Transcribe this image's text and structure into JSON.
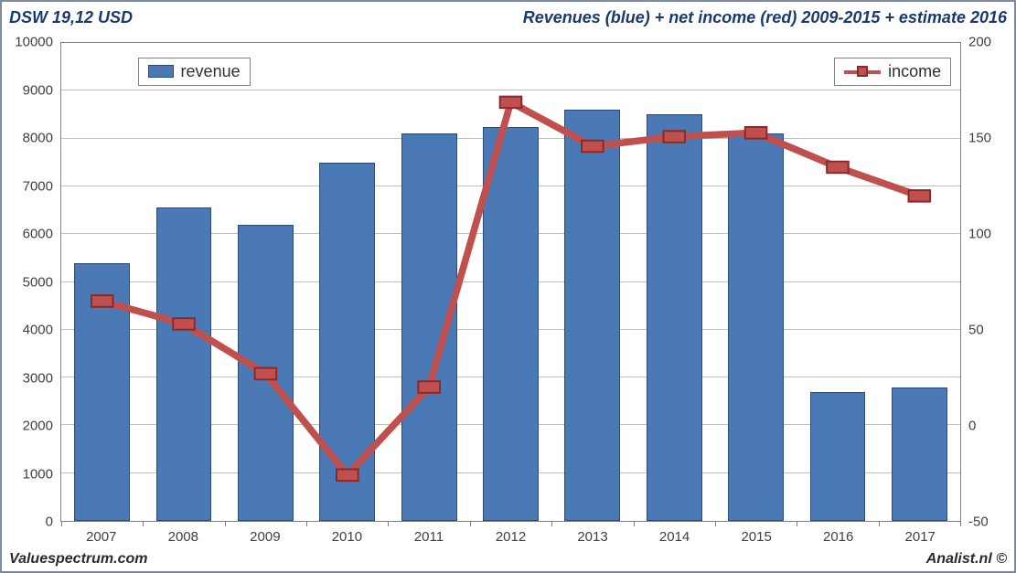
{
  "header": {
    "left": "DSW 19,12 USD",
    "right": "Revenues (blue) + net income (red) 2009-2015 + estimate 2016"
  },
  "footer": {
    "left": "Valuespectrum.com",
    "right": "Analist.nl ©"
  },
  "chart": {
    "type": "bar+line",
    "background_color": "#ffffff",
    "border_color": "#7c8aa0",
    "grid_color": "#c0c0c0",
    "axis_color": "#808080",
    "label_color": "#404040",
    "label_fontsize": 15,
    "categories": [
      "2007",
      "2008",
      "2009",
      "2010",
      "2011",
      "2012",
      "2013",
      "2014",
      "2015",
      "2016",
      "2017"
    ],
    "left_axis": {
      "min": 0,
      "max": 10000,
      "step": 1000,
      "ticks": [
        0,
        1000,
        2000,
        3000,
        4000,
        5000,
        6000,
        7000,
        8000,
        9000,
        10000
      ]
    },
    "right_axis": {
      "min": -50,
      "max": 200,
      "step": 50,
      "ticks": [
        -50,
        0,
        50,
        100,
        150,
        200
      ]
    },
    "bars": {
      "color": "#4a79b5",
      "border_color": "#2a4a7a",
      "width_fraction": 0.68,
      "values": [
        5400,
        6550,
        6200,
        7500,
        8100,
        8250,
        8600,
        8500,
        8100,
        2700,
        2800
      ]
    },
    "line": {
      "color": "#c0504d",
      "marker_fill": "#c0504d",
      "marker_border": "#8a2a28",
      "line_width": 4,
      "marker_size": 12,
      "values": [
        65,
        53,
        27,
        -26,
        20,
        169,
        146,
        151,
        153,
        135,
        120
      ]
    },
    "legends": {
      "revenue": {
        "label": "revenue",
        "pos_left_pct": 8.5,
        "pos_top_pct": 3.0
      },
      "income": {
        "label": "income",
        "pos_right_pct": 1.0,
        "pos_top_pct": 3.0
      }
    }
  }
}
